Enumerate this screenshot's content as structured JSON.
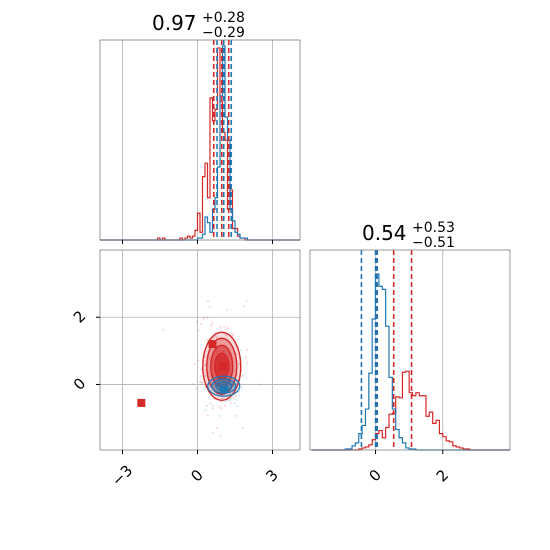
{
  "colors": {
    "series_a": "#d62728",
    "series_b": "#1f77b4",
    "grid": "#b0b0b0",
    "frame": "#7f7f7f"
  },
  "panels": {
    "hist1": {
      "title": {
        "value": "0.97",
        "plus": "+0.28",
        "minus": "−0.29"
      },
      "xlim": [
        -3.9,
        4.1
      ],
      "quantile_lines": [
        {
          "series": "series_a",
          "x": [
            0.65,
            0.97,
            1.25
          ]
        },
        {
          "series": "series_b",
          "x": [
            0.78,
            1.05,
            1.35
          ]
        }
      ]
    },
    "hist2": {
      "title": {
        "value": "0.54",
        "plus": "+0.53",
        "minus": "−0.51"
      },
      "xlim": [
        -1.95,
        4.0
      ],
      "xticks": [
        0,
        2
      ],
      "xtick_labels": [
        "0",
        "2"
      ],
      "quantile_lines": [
        {
          "series": "series_a",
          "x": [
            0.03,
            0.54,
            1.07
          ]
        },
        {
          "series": "series_b",
          "x": [
            -0.42,
            0.0,
            0.05
          ]
        }
      ]
    },
    "scatter": {
      "xlim": [
        -3.9,
        4.1
      ],
      "ylim": [
        -1.95,
        4.0
      ],
      "xticks": [
        -3,
        0,
        3
      ],
      "xtick_labels": [
        "−3",
        "0",
        "3"
      ],
      "yticks": [
        0,
        2
      ],
      "ytick_labels": [
        "0",
        "2"
      ],
      "markers": [
        {
          "series": "series_a",
          "x": -2.25,
          "y": -0.55
        },
        {
          "series": "series_a",
          "x": 0.6,
          "y": 1.2
        },
        {
          "series": "series_a",
          "x": 1.0,
          "y": 0.55
        },
        {
          "series": "series_b",
          "x": 1.05,
          "y": -0.15
        }
      ]
    }
  },
  "chart_data": [
    {
      "type": "bar",
      "series": [
        {
          "values": [
            0,
            0,
            0,
            0,
            0,
            0,
            0,
            0,
            0,
            0,
            0,
            0,
            0,
            0,
            0,
            0,
            0,
            0,
            0,
            0,
            0,
            0,
            0,
            1,
            0,
            1,
            0,
            0,
            0,
            0,
            0,
            0,
            1,
            0,
            1,
            2,
            1,
            2,
            5,
            14,
            4,
            33,
            40,
            22,
            74,
            62,
            68,
            100,
            72,
            56,
            52,
            16,
            26,
            6,
            6,
            2,
            1,
            1,
            0,
            0,
            0,
            0,
            0,
            0,
            0,
            0,
            0,
            0,
            0,
            0,
            0,
            0,
            0,
            0,
            0,
            0,
            0,
            0,
            0,
            0
          ],
          "x_start": -3.9,
          "bin_width": 0.1
        },
        {
          "values": [
            0,
            0,
            0,
            0,
            0,
            0,
            0,
            0,
            0,
            0,
            0,
            0,
            0,
            0,
            0,
            0,
            0,
            0,
            0,
            0,
            0,
            0,
            0,
            0,
            0,
            0,
            0,
            0,
            0,
            0,
            0,
            0,
            0,
            0,
            0,
            0,
            0,
            0,
            0,
            1,
            1,
            3,
            12,
            9,
            4,
            16,
            22,
            38,
            75,
            101,
            64,
            52,
            16,
            10,
            4,
            3,
            1,
            1,
            1,
            0,
            0,
            0,
            0,
            0,
            0,
            0,
            0,
            0,
            0,
            0,
            0,
            0,
            0,
            0,
            0,
            0,
            0,
            0,
            0,
            0
          ],
          "x_start": -3.9,
          "bin_width": 0.1
        }
      ]
    },
    {
      "type": "bar",
      "series": [
        {
          "values": [
            0,
            0,
            0,
            0,
            0,
            0,
            0,
            0,
            0,
            0,
            0,
            0,
            0,
            0,
            1,
            2,
            3,
            5,
            10,
            16,
            19,
            12,
            22,
            35,
            36,
            52,
            51,
            76,
            77,
            56,
            53,
            56,
            53,
            53,
            33,
            37,
            26,
            29,
            16,
            13,
            9,
            8,
            4,
            3,
            2,
            1,
            1,
            0,
            0,
            0,
            0,
            0,
            0,
            0,
            0,
            0,
            0,
            0,
            0
          ],
          "x_start": -1.9,
          "bin_width": 0.1
        },
        {
          "values": [
            0,
            0,
            0,
            0,
            0,
            0,
            0,
            0,
            0,
            0,
            1,
            1,
            4,
            7,
            16,
            24,
            40,
            75,
            128,
            172,
            160,
            157,
            121,
            71,
            40,
            20,
            12,
            7,
            2,
            1,
            1,
            0,
            0,
            0,
            0,
            0,
            0,
            0,
            0,
            0,
            0,
            0,
            0,
            0,
            0,
            0,
            0,
            0,
            0,
            0,
            0,
            0,
            0,
            0,
            0,
            0,
            0,
            0,
            0
          ],
          "x_start": -1.9,
          "bin_width": 0.1
        }
      ]
    },
    {
      "type": "scatter",
      "series": [
        {
          "x": [
            -2.25,
            0.6,
            1.0
          ],
          "y": [
            -0.55,
            1.2,
            0.55
          ]
        },
        {
          "x": [
            1.05
          ],
          "y": [
            -0.15
          ]
        }
      ],
      "xlim": [
        -3.9,
        4.1
      ],
      "ylim": [
        -1.95,
        4.0
      ]
    }
  ]
}
